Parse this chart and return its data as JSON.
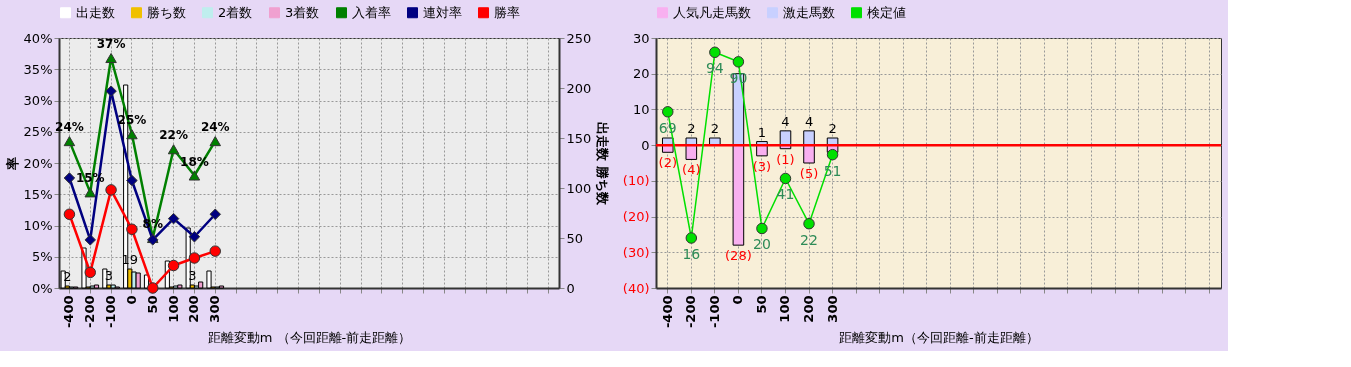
{
  "chart_data": [
    {
      "type": "bar",
      "xlabel": "距離変動m （今回距離-前走距離）",
      "ylabel": "率",
      "y2label": "出走数 勝ち数",
      "legend": "top",
      "grid": true,
      "categories": [
        "-400",
        "-200",
        "-100",
        "0",
        "50",
        "100",
        "200",
        "300",
        null,
        null,
        null,
        null,
        null,
        null,
        null,
        null,
        null,
        null,
        null,
        null,
        null,
        null,
        null,
        null
      ],
      "ylim": [
        0,
        40
      ],
      "yticks": [
        {
          "value": 0,
          "label": "0%"
        },
        {
          "value": 5,
          "label": "5%"
        },
        {
          "value": 10,
          "label": "10%"
        },
        {
          "value": 15,
          "label": "15%"
        },
        {
          "value": 20,
          "label": "20%"
        },
        {
          "value": 25,
          "label": "25%"
        },
        {
          "value": 30,
          "label": "30%"
        },
        {
          "value": 35,
          "label": "35%"
        },
        {
          "value": 40,
          "label": "40%"
        }
      ],
      "y2lim": [
        0,
        250
      ],
      "y2ticks": [
        0,
        50,
        100,
        150,
        200,
        250
      ],
      "series": [
        {
          "name": "出走数",
          "axis": "y2",
          "color": "#ffffff",
          "values": [
            17,
            40,
            19,
            203,
            13,
            27,
            60,
            17,
            null,
            null,
            null,
            null,
            null,
            null,
            null,
            null,
            null,
            null,
            null,
            null,
            null,
            null,
            null,
            null
          ]
        },
        {
          "name": "勝ち数",
          "axis": "y2",
          "color": "#f0c000",
          "values": [
            2,
            1,
            3,
            19,
            0,
            1,
            3,
            1,
            null,
            null,
            null,
            null,
            null,
            null,
            null,
            null,
            null,
            null,
            null,
            null,
            null,
            null,
            null,
            null
          ],
          "value_labels": [
            "2",
            null,
            "3",
            "19",
            null,
            null,
            "3",
            null,
            null,
            null,
            null,
            null,
            null,
            null,
            null,
            null,
            null,
            null,
            null,
            null,
            null,
            null,
            null,
            null
          ]
        },
        {
          "name": "2着数",
          "axis": "y2",
          "color": "#bfeeee",
          "values": [
            1,
            2,
            3,
            16,
            1,
            2,
            2,
            1,
            null,
            null,
            null,
            null,
            null,
            null,
            null,
            null,
            null,
            null,
            null,
            null,
            null,
            null,
            null,
            null
          ]
        },
        {
          "name": "3着数",
          "axis": "y2",
          "color": "#f0a0d0",
          "values": [
            1,
            3,
            1,
            15,
            0,
            3,
            6,
            2,
            null,
            null,
            null,
            null,
            null,
            null,
            null,
            null,
            null,
            null,
            null,
            null,
            null,
            null,
            null,
            null
          ]
        },
        {
          "name": "入着率",
          "type": "line",
          "marker": "triangle",
          "color": "#008000",
          "values": [
            23.5,
            15.3,
            36.8,
            24.6,
            8.0,
            22.2,
            18.0,
            23.5,
            null,
            null,
            null,
            null,
            null,
            null,
            null,
            null,
            null,
            null,
            null,
            null,
            null,
            null,
            null,
            null
          ],
          "value_labels": [
            "24%",
            "15%",
            "37%",
            "25%",
            "8%",
            "22%",
            "18%",
            "24%",
            null,
            null,
            null,
            null,
            null,
            null,
            null,
            null,
            null,
            null,
            null,
            null,
            null,
            null,
            null,
            null
          ]
        },
        {
          "name": "連対率",
          "type": "line",
          "marker": "diamond",
          "color": "#000080",
          "values": [
            17.6,
            7.7,
            31.5,
            17.2,
            7.7,
            11.1,
            8.2,
            11.8,
            null,
            null,
            null,
            null,
            null,
            null,
            null,
            null,
            null,
            null,
            null,
            null,
            null,
            null,
            null,
            null
          ]
        },
        {
          "name": "勝率",
          "type": "line",
          "marker": "circle",
          "color": "#ff0000",
          "values": [
            11.8,
            2.5,
            15.7,
            9.4,
            0,
            3.6,
            4.8,
            5.9,
            null,
            null,
            null,
            null,
            null,
            null,
            null,
            null,
            null,
            null,
            null,
            null,
            null,
            null,
            null,
            null
          ]
        }
      ]
    },
    {
      "type": "bar",
      "stacked": true,
      "xlabel": "距離変動m（今回距離-前走距離）",
      "legend": "top",
      "grid": true,
      "categories": [
        "-400",
        "-200",
        "-100",
        "0",
        "50",
        "100",
        "200",
        "300",
        null,
        null,
        null,
        null,
        null,
        null,
        null,
        null,
        null,
        null,
        null,
        null,
        null,
        null,
        null,
        null
      ],
      "ylim": [
        -40,
        30
      ],
      "yticks": [
        {
          "value": -40,
          "label": "(40)"
        },
        {
          "value": -30,
          "label": "(30)"
        },
        {
          "value": -20,
          "label": "(20)"
        },
        {
          "value": -10,
          "label": "(10)"
        },
        0,
        10,
        20,
        30
      ],
      "y2lim": [
        -5,
        100
      ],
      "ref_lines": [
        {
          "axis": "y",
          "value": 0,
          "color": "#ff0000"
        }
      ],
      "series": [
        {
          "name": "人気凡走馬数",
          "color": "#f8b0f0",
          "values": [
            -2,
            -4,
            0,
            -28,
            -3,
            -1,
            -5,
            -2,
            null,
            null,
            null,
            null,
            null,
            null,
            null,
            null,
            null,
            null,
            null,
            null,
            null,
            null,
            null,
            null
          ],
          "value_labels": [
            "(2)",
            "(4)",
            null,
            "(28)",
            "(3)",
            "(1)",
            "(5)",
            null,
            null,
            null,
            null,
            null,
            null,
            null,
            null,
            null,
            null,
            null,
            null,
            null,
            null,
            null,
            null,
            null
          ]
        },
        {
          "name": "激走馬数",
          "color": "#c8d0ff",
          "values": [
            2,
            2,
            2,
            20,
            1,
            4,
            4,
            2,
            null,
            null,
            null,
            null,
            null,
            null,
            null,
            null,
            null,
            null,
            null,
            null,
            null,
            null,
            null,
            null
          ],
          "value_labels": [
            null,
            "2",
            "2",
            null,
            "1",
            "4",
            "4",
            "2",
            null,
            null,
            null,
            null,
            null,
            null,
            null,
            null,
            null,
            null,
            null,
            null,
            null,
            null,
            null,
            null
          ]
        },
        {
          "name": "検定値",
          "type": "line",
          "axis": "y2",
          "marker": "circle",
          "color": "#00e000",
          "values": [
            69,
            16,
            94,
            90,
            20,
            41,
            22,
            51,
            null,
            null,
            null,
            null,
            null,
            null,
            null,
            null,
            null,
            null,
            null,
            null,
            null,
            null,
            null,
            null
          ],
          "value_labels": [
            "69",
            "16",
            "94",
            "90",
            "20",
            "41",
            "22",
            "51",
            null,
            null,
            null,
            null,
            null,
            null,
            null,
            null,
            null,
            null,
            null,
            null,
            null,
            null,
            null,
            null
          ]
        }
      ]
    }
  ]
}
